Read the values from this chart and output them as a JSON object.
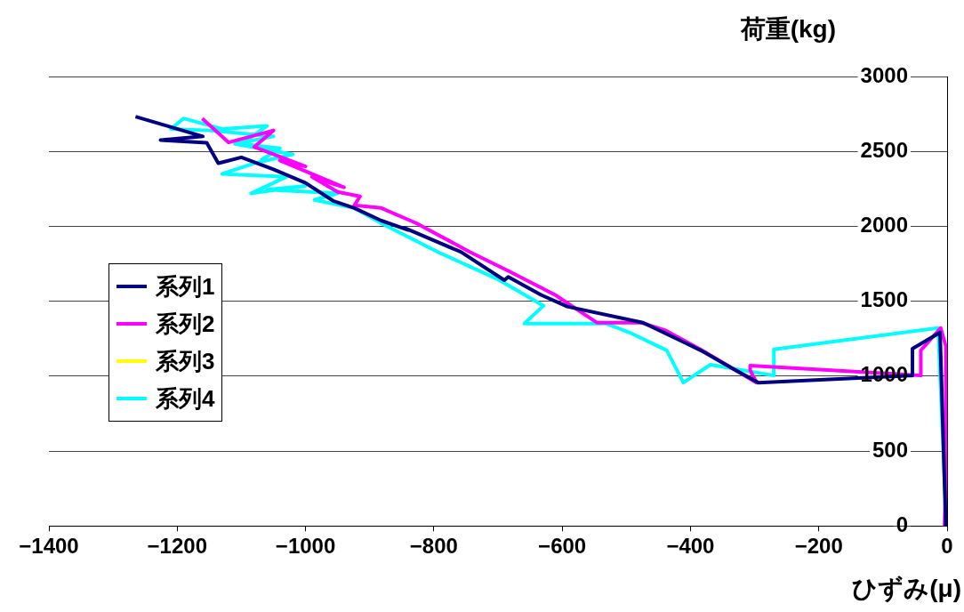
{
  "chart_data": {
    "type": "line",
    "xlabel": "ひずみ(μ)",
    "ylabel": "荷重(kg)",
    "xlim": [
      -1400,
      0
    ],
    "xticks": [
      -1400,
      -1200,
      -1000,
      -800,
      -600,
      -400,
      -200,
      0
    ],
    "ylim": [
      0,
      3000
    ],
    "yticks": [
      0,
      500,
      1000,
      1500,
      2000,
      2500,
      3000
    ],
    "grid": "y",
    "legend": "left",
    "marker": "none",
    "line_style": "solid",
    "series": [
      {
        "name": "系列1",
        "color": "#000080",
        "x": [
          -2,
          -11,
          -54,
          -54,
          -294,
          -335,
          -384,
          -474,
          -592,
          -633,
          -684,
          -690,
          -758,
          -846,
          -840,
          -882,
          -924,
          -957,
          -1000,
          -1050,
          -1100,
          -1136,
          -1154,
          -1226,
          -1160,
          -1265
        ],
        "values": [
          0,
          1291,
          1183,
          1004,
          956,
          1052,
          1172,
          1357,
          1464,
          1542,
          1662,
          1640,
          1829,
          1990,
          1975,
          2038,
          2122,
          2170,
          2290,
          2380,
          2460,
          2421,
          2558,
          2576,
          2600,
          2732
        ]
      },
      {
        "name": "系列2",
        "color": "#ff00ff",
        "x": [
          -4,
          -2,
          -2,
          -10,
          -41,
          -41,
          -307,
          -307,
          -297,
          -384,
          -438,
          -477,
          -546,
          -611,
          -684,
          -744,
          -827,
          -882,
          -924,
          -915,
          -950,
          -990,
          -940,
          -1040,
          -1000,
          -1080,
          -1050,
          -1120,
          -1161
        ],
        "values": [
          0,
          287,
          1201,
          1321,
          1172,
          1004,
          1070,
          1040,
          956,
          1177,
          1303,
          1357,
          1357,
          1542,
          1703,
          1829,
          2020,
          2122,
          2140,
          2200,
          2230,
          2330,
          2260,
          2440,
          2400,
          2530,
          2640,
          2560,
          2720
        ]
      },
      {
        "name": "系列3",
        "color": "#ffff00"
      },
      {
        "name": "系列4",
        "color": "#00ffff",
        "x": [
          -1,
          -14,
          -270,
          -270,
          -369,
          -411,
          -437,
          -495,
          -532,
          -659,
          -629,
          -702,
          -791,
          -882,
          -924,
          -986,
          -950,
          -1060,
          -1000,
          -1085,
          -1030,
          -1130,
          -1080,
          -1020,
          -1110,
          -1050,
          -1150,
          -1210,
          -1190,
          -1130,
          -1060,
          -1100,
          -1040,
          -1070
        ],
        "values": [
          0,
          1321,
          1178,
          1004,
          1076,
          956,
          1172,
          1291,
          1351,
          1351,
          1470,
          1650,
          1823,
          2020,
          2122,
          2176,
          2220,
          2245,
          2270,
          2220,
          2330,
          2350,
          2420,
          2480,
          2550,
          2600,
          2640,
          2650,
          2720,
          2650,
          2670,
          2550,
          2520,
          2440
        ]
      }
    ]
  }
}
